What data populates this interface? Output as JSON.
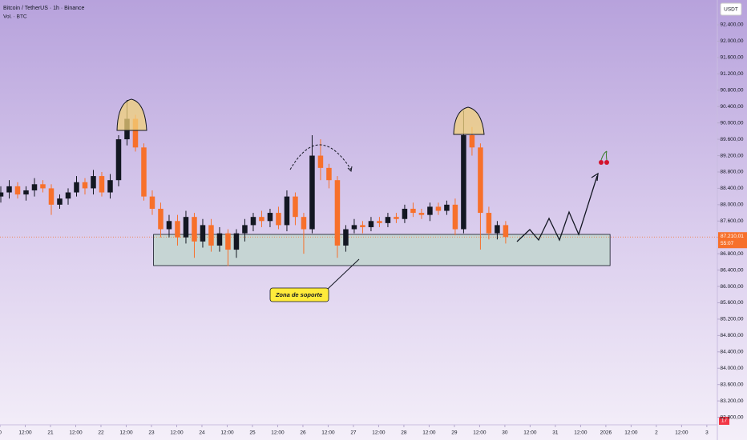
{
  "chart_data": {
    "type": "candlestick",
    "title": "Bitcoin / TetherUS · 1h · Binance",
    "subtitle": "Vol. · BTC",
    "currency": "USDT",
    "annotations": [
      "Zona de soporte"
    ],
    "x": [
      0,
      4,
      8,
      12,
      16,
      20,
      24,
      28,
      32,
      36,
      40,
      44,
      48,
      52,
      56,
      60,
      64,
      68,
      72,
      76,
      80,
      84,
      88,
      92,
      96,
      100,
      104,
      108,
      112,
      116,
      120,
      124,
      128,
      132,
      136,
      140,
      144,
      148,
      152,
      156,
      160,
      164,
      168,
      172,
      176,
      180,
      184,
      188,
      192,
      196,
      200,
      204,
      208,
      212,
      216,
      220,
      224,
      228,
      232,
      236,
      240
    ],
    "open": [
      88200,
      88300,
      88450,
      88250,
      88350,
      88500,
      88400,
      88000,
      88150,
      88300,
      88550,
      88400,
      88700,
      88300,
      88600,
      89600,
      90100,
      89400,
      88200,
      87900,
      87400,
      87600,
      87200,
      87700,
      87100,
      87500,
      87000,
      87300,
      86900,
      87300,
      87500,
      87700,
      87600,
      87800,
      87500,
      88200,
      87700,
      87400,
      89200,
      88900,
      88600,
      87000,
      87400,
      87500,
      87450,
      87600,
      87550,
      87700,
      87650,
      87900,
      87800,
      87750,
      87950,
      87850,
      88000,
      87400,
      89700,
      89400,
      87800,
      87300,
      87500
    ],
    "high": [
      88450,
      88600,
      88550,
      88450,
      88650,
      88600,
      88500,
      88250,
      88400,
      88700,
      88650,
      88850,
      88800,
      88750,
      89700,
      90560,
      90200,
      89500,
      88350,
      88050,
      87750,
      87750,
      87850,
      87800,
      87650,
      87650,
      87450,
      87400,
      87400,
      87650,
      87800,
      87850,
      87900,
      87950,
      88350,
      88300,
      87800,
      89700,
      89600,
      89000,
      88700,
      87500,
      87650,
      87600,
      87700,
      87700,
      87800,
      87800,
      88000,
      88050,
      87900,
      88050,
      88050,
      88100,
      88150,
      90300,
      89900,
      89500,
      87950,
      87600,
      87600
    ],
    "low": [
      88050,
      88150,
      88150,
      88100,
      88200,
      88300,
      87750,
      87900,
      88000,
      88200,
      88250,
      88250,
      88200,
      88150,
      88450,
      89450,
      89300,
      88100,
      87750,
      87200,
      87200,
      87000,
      87050,
      86700,
      86950,
      86850,
      86850,
      86500,
      86700,
      87100,
      87350,
      87450,
      87450,
      87400,
      87350,
      87500,
      86800,
      87300,
      88600,
      88400,
      86700,
      86850,
      87300,
      87300,
      87350,
      87450,
      87450,
      87550,
      87550,
      87700,
      87650,
      87600,
      87750,
      87750,
      87250,
      87300,
      89200,
      86900,
      87150,
      87150,
      87050
    ],
    "close": [
      88300,
      88450,
      88250,
      88350,
      88500,
      88400,
      88000,
      88150,
      88300,
      88550,
      88400,
      88700,
      88300,
      88600,
      89600,
      90100,
      89400,
      88200,
      87900,
      87400,
      87600,
      87200,
      87700,
      87100,
      87500,
      87000,
      87300,
      86900,
      87300,
      87500,
      87700,
      87600,
      87800,
      87500,
      88200,
      87700,
      87400,
      89200,
      88900,
      88600,
      87000,
      87400,
      87500,
      87450,
      87600,
      87550,
      87700,
      87650,
      87900,
      87800,
      87750,
      87950,
      87850,
      88000,
      87400,
      89700,
      89400,
      87800,
      87300,
      87500,
      87210
    ],
    "up_color": "#131722",
    "down_color": "#f7702b",
    "support_zone": {
      "x": [
        73,
        290
      ],
      "y": [
        86510,
        87273
      ],
      "color": "#c2d6cf"
    },
    "last_price": 87210.01,
    "last_price_label": "87.210,01",
    "countdown": "55:07",
    "alert_count": "17",
    "xlim": [
      0,
      341
    ],
    "ylim": [
      82635,
      93007
    ],
    "grid": false,
    "xticks": [
      {
        "value": 0,
        "label": "0"
      },
      {
        "value": 12,
        "label": "12:00"
      },
      {
        "value": 24,
        "label": "21"
      },
      {
        "value": 36,
        "label": "12:00"
      },
      {
        "value": 48,
        "label": "22"
      },
      {
        "value": 60,
        "label": "12:00"
      },
      {
        "value": 72,
        "label": "23"
      },
      {
        "value": 84,
        "label": "12:00"
      },
      {
        "value": 96,
        "label": "24"
      },
      {
        "value": 108,
        "label": "12:00"
      },
      {
        "value": 120,
        "label": "25"
      },
      {
        "value": 132,
        "label": "12:00"
      },
      {
        "value": 144,
        "label": "26"
      },
      {
        "value": 156,
        "label": "12:00"
      },
      {
        "value": 168,
        "label": "27"
      },
      {
        "value": 180,
        "label": "12:00"
      },
      {
        "value": 192,
        "label": "28"
      },
      {
        "value": 204,
        "label": "12:00"
      },
      {
        "value": 216,
        "label": "29"
      },
      {
        "value": 228,
        "label": "12:00"
      },
      {
        "value": 240,
        "label": "30"
      },
      {
        "value": 252,
        "label": "12:00"
      },
      {
        "value": 264,
        "label": "31"
      },
      {
        "value": 276,
        "label": "12:00"
      },
      {
        "value": 288,
        "label": "2026"
      },
      {
        "value": 300,
        "label": "12:00"
      },
      {
        "value": 312,
        "label": "2"
      },
      {
        "value": 324,
        "label": "12:00"
      },
      {
        "value": 336,
        "label": "3"
      }
    ],
    "yticks": [
      {
        "value": 92400,
        "label": "92.400,00"
      },
      {
        "value": 92000,
        "label": "92.000,00"
      },
      {
        "value": 91600,
        "label": "91.600,00"
      },
      {
        "value": 91200,
        "label": "91.200,00"
      },
      {
        "value": 90800,
        "label": "90.800,00"
      },
      {
        "value": 90400,
        "label": "90.400,00"
      },
      {
        "value": 90000,
        "label": "90.000,00"
      },
      {
        "value": 89600,
        "label": "89.600,00"
      },
      {
        "value": 89200,
        "label": "89.200,00"
      },
      {
        "value": 88800,
        "label": "88.800,00"
      },
      {
        "value": 88400,
        "label": "88.400,00"
      },
      {
        "value": 88000,
        "label": "88.000,00"
      },
      {
        "value": 87600,
        "label": "87.600,00"
      },
      {
        "value": 87200,
        "label": "87.200,00"
      },
      {
        "value": 86800,
        "label": "86.800,00"
      },
      {
        "value": 86400,
        "label": "86.400,00"
      },
      {
        "value": 86000,
        "label": "86.000,00"
      },
      {
        "value": 85600,
        "label": "85.600,00"
      },
      {
        "value": 85200,
        "label": "85.200,00"
      },
      {
        "value": 84800,
        "label": "84.800,00"
      },
      {
        "value": 84400,
        "label": "84.400,00"
      },
      {
        "value": 84000,
        "label": "84.000,00"
      },
      {
        "value": 83600,
        "label": "83.600,00"
      },
      {
        "value": 83200,
        "label": "83.200,00"
      },
      {
        "value": 82800,
        "label": "82.800,00"
      }
    ]
  }
}
